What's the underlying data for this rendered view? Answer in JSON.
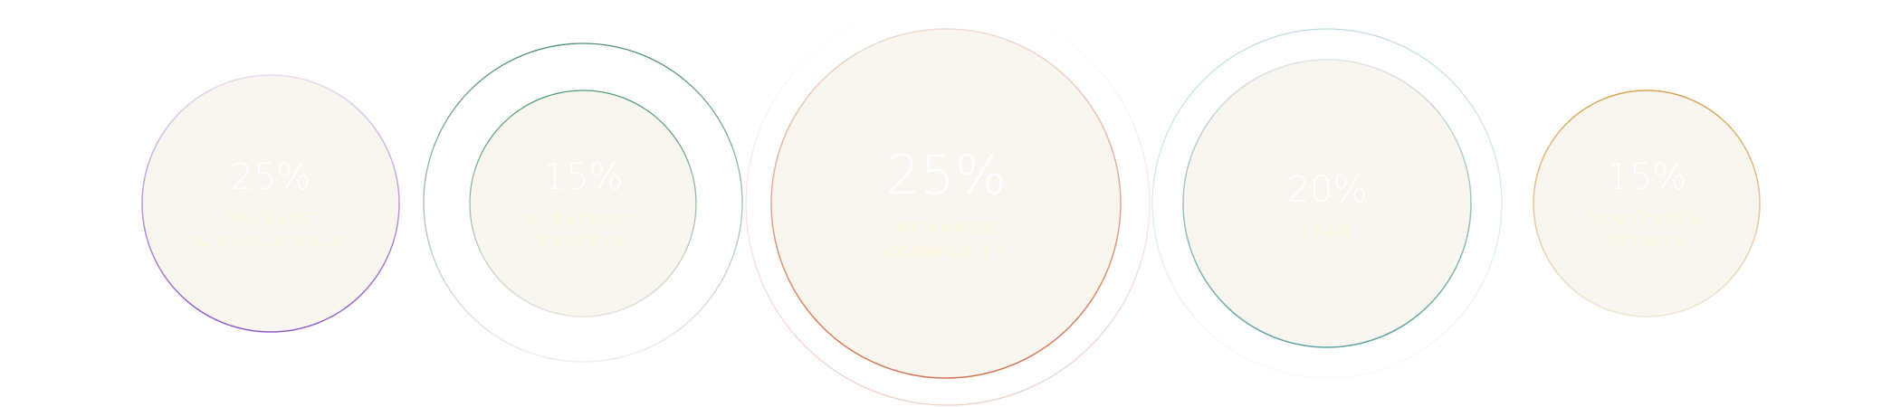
{
  "colors": {
    "fill": "#f9f6ef",
    "presale": "#9b6ac6",
    "strategic": "#4f8f76",
    "rewards": "#d9775a",
    "team": "#5aa3a3",
    "ecosystem": "#d9a95a"
  },
  "allocations": [
    {
      "percent": "25%",
      "label_line1": "Presale",
      "label_line2": "& Public Sale"
    },
    {
      "percent": "15%",
      "label_line1": "Strategic",
      "label_line2": "Reserve"
    },
    {
      "percent": "25%",
      "label_line1": "Rewards",
      "label_line2": "Community"
    },
    {
      "percent": "20%",
      "label_line1": "Team",
      "label_line2": ""
    },
    {
      "percent": "15%",
      "label_line1": "Ecosystem",
      "label_line2": "Growth"
    }
  ]
}
